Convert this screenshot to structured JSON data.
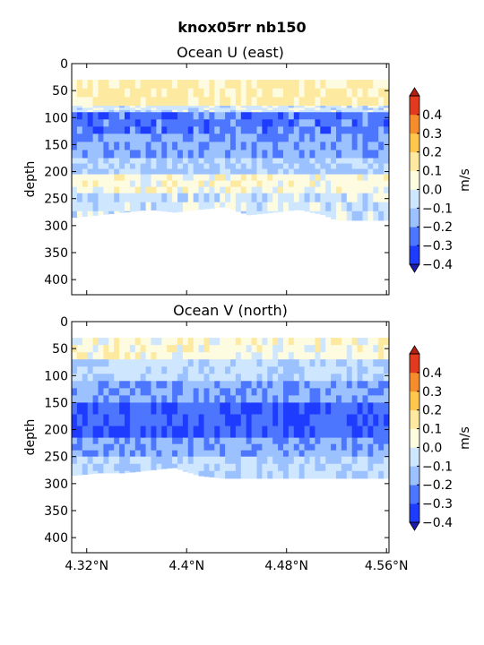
{
  "chart_data": {
    "suptitle": "knox05rr nb150",
    "type": "heatmap",
    "x": {
      "ticks": [
        4.32,
        4.4,
        4.48,
        4.56
      ],
      "tick_labels": [
        "4.32°N",
        "4.4°N",
        "4.48°N",
        "4.56°N"
      ],
      "range": [
        4.308,
        4.562
      ]
    },
    "y": {
      "label": "depth",
      "ticks": [
        0,
        50,
        100,
        150,
        200,
        250,
        300,
        350,
        400
      ],
      "range": [
        0,
        428
      ],
      "inverted": true
    },
    "colorbar": {
      "label": "m/s",
      "levels": [
        -0.4,
        -0.3,
        -0.2,
        -0.1,
        0.0,
        0.1,
        0.2,
        0.3,
        0.4
      ],
      "tick_labels": [
        "−0.4",
        "−0.3",
        "−0.2",
        "−0.1",
        "0.0",
        "0.1",
        "0.2",
        "0.3",
        "0.4"
      ],
      "colors": [
        "#1e3cff",
        "#4d76ff",
        "#9cc1ff",
        "#cfe6ff",
        "#fdfbe0",
        "#fde9a0",
        "#fcc74a",
        "#f68d2c",
        "#e23a1e"
      ],
      "under_color": "#1c1cb0",
      "over_color": "#b81e10"
    },
    "panels": [
      {
        "title": "Ocean U (east)",
        "data_top_depth": 30,
        "layers": [
          {
            "depth": [
              30,
              78
            ],
            "value": 0.12
          },
          {
            "depth": [
              78,
              90
            ],
            "value": -0.05
          },
          {
            "depth": [
              90,
              130
            ],
            "value": -0.25
          },
          {
            "depth": [
              130,
              175
            ],
            "value": -0.18
          },
          {
            "depth": [
              175,
              205
            ],
            "value": -0.12
          },
          {
            "depth": [
              205,
              240
            ],
            "value": 0.05
          },
          {
            "depth": [
              240,
              290
            ],
            "value": -0.05
          }
        ],
        "bottom_profile": [
          [
            4.308,
            285
          ],
          [
            4.33,
            280
          ],
          [
            4.35,
            275
          ],
          [
            4.37,
            270
          ],
          [
            4.39,
            275
          ],
          [
            4.41,
            270
          ],
          [
            4.43,
            265
          ],
          [
            4.45,
            280
          ],
          [
            4.47,
            275
          ],
          [
            4.49,
            270
          ],
          [
            4.51,
            280
          ],
          [
            4.53,
            300
          ],
          [
            4.54,
            330
          ],
          [
            4.55,
            360
          ],
          [
            4.562,
            360
          ]
        ]
      },
      {
        "title": "Ocean V (north)",
        "data_top_depth": 30,
        "layers": [
          {
            "depth": [
              30,
              70
            ],
            "value": 0.05
          },
          {
            "depth": [
              70,
              110
            ],
            "value": -0.08
          },
          {
            "depth": [
              110,
              150
            ],
            "value": -0.18
          },
          {
            "depth": [
              150,
              215
            ],
            "value": -0.28
          },
          {
            "depth": [
              215,
              250
            ],
            "value": -0.18
          },
          {
            "depth": [
              250,
              290
            ],
            "value": -0.1
          }
        ],
        "bottom_profile": [
          [
            4.308,
            285
          ],
          [
            4.33,
            280
          ],
          [
            4.35,
            280
          ],
          [
            4.37,
            275
          ],
          [
            4.39,
            270
          ],
          [
            4.41,
            285
          ],
          [
            4.43,
            290
          ],
          [
            4.45,
            295
          ],
          [
            4.47,
            300
          ],
          [
            4.49,
            305
          ],
          [
            4.51,
            310
          ],
          [
            4.53,
            320
          ],
          [
            4.54,
            345
          ],
          [
            4.55,
            360
          ],
          [
            4.562,
            360
          ]
        ]
      }
    ]
  }
}
